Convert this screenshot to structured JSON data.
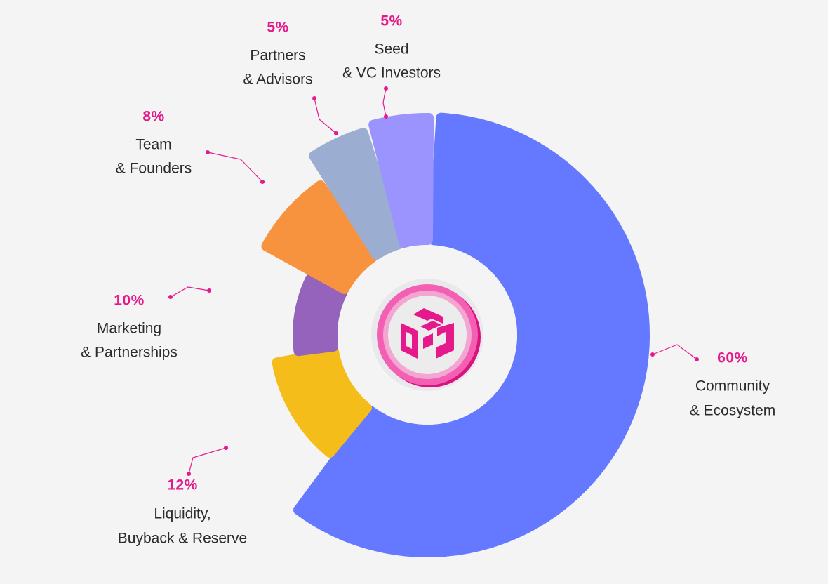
{
  "chart_data": {
    "type": "pie",
    "variant": "donut",
    "title": "",
    "slices": [
      {
        "name": "Community & Ecosystem",
        "value": 60,
        "label": "60%",
        "line1": "Community",
        "line2": "& Ecosystem",
        "color": "#6479ff"
      },
      {
        "name": "Liquidity, Buyback & Reserve",
        "value": 12,
        "label": "12%",
        "line1": "Liquidity,",
        "line2": "Buyback & Reserve",
        "color": "#f5bd19"
      },
      {
        "name": "Marketing & Partnerships",
        "value": 10,
        "label": "10%",
        "line1": "Marketing",
        "line2": "& Partnerships",
        "color": "#9563bc"
      },
      {
        "name": "Team & Founders",
        "value": 8,
        "label": "8%",
        "line1": "Team",
        "line2": "& Founders",
        "color": "#f7923e"
      },
      {
        "name": "Partners & Advisors",
        "value": 5,
        "label": "5%",
        "line1": "Partners",
        "line2": "& Advisors",
        "color": "#9baed2"
      },
      {
        "name": "Seed & VC Investors",
        "value": 5,
        "label": "5%",
        "line1": "Seed",
        "line2": "& VC Investors",
        "color": "#9b93fe"
      }
    ]
  },
  "colors": {
    "background": "#f4f4f4",
    "accent": "#e5198c"
  },
  "center_icon": "token-cube-logo-icon"
}
